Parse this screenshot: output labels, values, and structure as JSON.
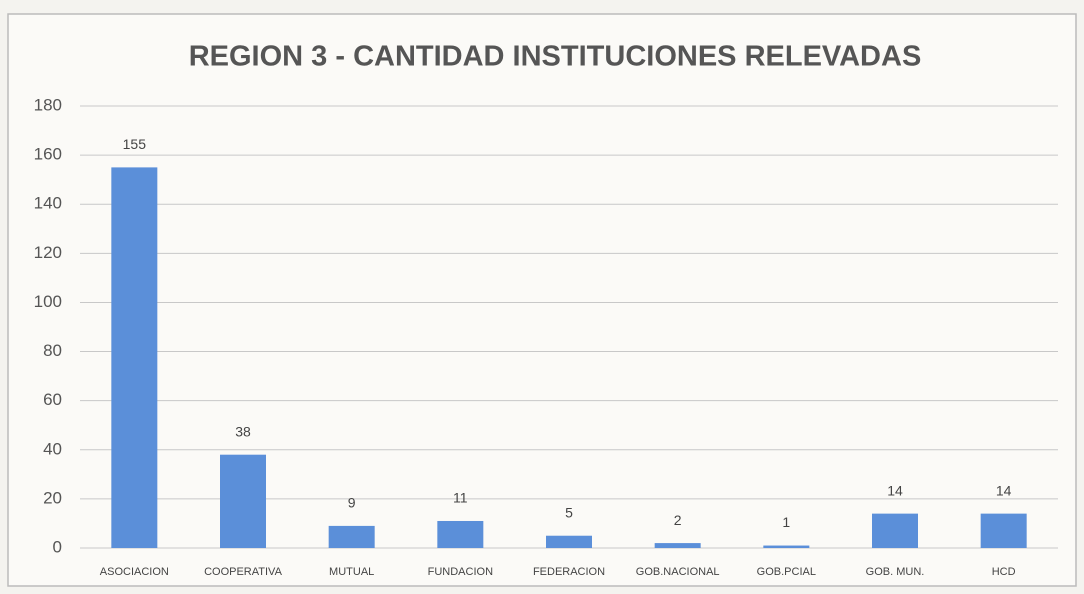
{
  "chart_data": {
    "type": "bar",
    "title": "REGION 3 - CANTIDAD INSTITUCIONES RELEVADAS",
    "categories": [
      "ASOCIACION",
      "COOPERATIVA",
      "MUTUAL",
      "FUNDACION",
      "FEDERACION",
      "GOB.NACIONAL",
      "GOB.PCIAL",
      "GOB. MUN.",
      "HCD"
    ],
    "values": [
      155,
      38,
      9,
      11,
      5,
      2,
      1,
      14,
      14
    ],
    "color": "#5b8fd9",
    "ylim": [
      0,
      180
    ],
    "yticks": [
      0,
      20,
      40,
      60,
      80,
      100,
      120,
      140,
      160,
      180
    ],
    "grid": true
  }
}
